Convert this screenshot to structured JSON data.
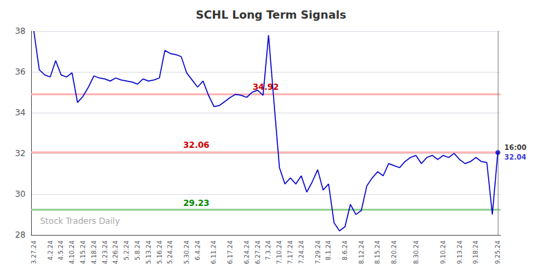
{
  "chart_data": {
    "type": "line",
    "title": "SCHL Long Term Signals",
    "color": "#0000cc",
    "categories": [
      "3.27.24",
      null,
      null,
      "4.2.24",
      null,
      "4.5.24",
      null,
      "4.10.24",
      null,
      "4.15.24",
      null,
      "4.18.24",
      null,
      "4.23.24",
      null,
      "4.26.24",
      null,
      "5.2.24",
      null,
      "5.8.24",
      null,
      "5.13.24",
      null,
      "5.16.24",
      null,
      "5.24.24",
      null,
      null,
      "5.30.24",
      null,
      "6.4.24",
      null,
      null,
      "6.11.24",
      null,
      null,
      "6.17.24",
      null,
      null,
      "6.24.24",
      null,
      "6.27.24",
      null,
      "7.3.24",
      null,
      "7.10.24",
      null,
      "7.17.24",
      null,
      "7.24.24",
      null,
      null,
      "7.29.24",
      null,
      "8.1.24",
      null,
      null,
      "8.6.24",
      null,
      null,
      "8.12.24",
      null,
      null,
      "8.15.24",
      null,
      null,
      "8.20.24",
      null,
      null,
      null,
      "8.30.24",
      null,
      null,
      null,
      null,
      "9.10.24",
      null,
      null,
      "9.13.24",
      null,
      null,
      "9.18.24",
      null,
      null,
      null,
      "9.25.24"
    ],
    "values": [
      38.0,
      36.1,
      35.85,
      35.75,
      36.55,
      35.85,
      35.75,
      35.95,
      34.5,
      34.8,
      35.25,
      35.8,
      35.7,
      35.65,
      35.55,
      35.7,
      35.6,
      35.55,
      35.5,
      35.4,
      35.65,
      35.55,
      35.6,
      35.7,
      37.05,
      36.9,
      36.85,
      36.75,
      35.95,
      35.6,
      35.25,
      35.55,
      34.85,
      34.3,
      34.35,
      34.55,
      34.75,
      34.9,
      34.85,
      34.75,
      35.0,
      35.1,
      34.85,
      37.8,
      34.5,
      31.3,
      30.5,
      30.8,
      30.5,
      30.9,
      30.1,
      30.6,
      31.2,
      30.2,
      30.5,
      28.6,
      28.2,
      28.4,
      29.5,
      29.0,
      29.2,
      30.4,
      30.8,
      31.1,
      30.9,
      31.5,
      31.4,
      31.3,
      31.6,
      31.8,
      31.9,
      31.5,
      31.8,
      31.9,
      31.7,
      31.9,
      31.8,
      32.0,
      31.7,
      31.5,
      31.6,
      31.8,
      31.6,
      31.55,
      29.0,
      32.04
    ],
    "ylim": [
      28,
      38
    ],
    "yticks": [
      28,
      30,
      32,
      34,
      36,
      38
    ],
    "grid": true,
    "reference_lines": [
      {
        "value": 34.92,
        "label": "34.92",
        "color": "#ffaaaa",
        "label_color": "#cc0000"
      },
      {
        "value": 32.06,
        "label": "32.06",
        "color": "#ffaaaa",
        "label_color": "#cc0000"
      },
      {
        "value": 29.23,
        "label": "29.23",
        "color": "#88cc88",
        "label_color": "#008800"
      }
    ],
    "end_point": {
      "value": 32.04,
      "label": "32.04",
      "time_label": "16:00"
    },
    "watermark": "Stock Traders Daily"
  }
}
